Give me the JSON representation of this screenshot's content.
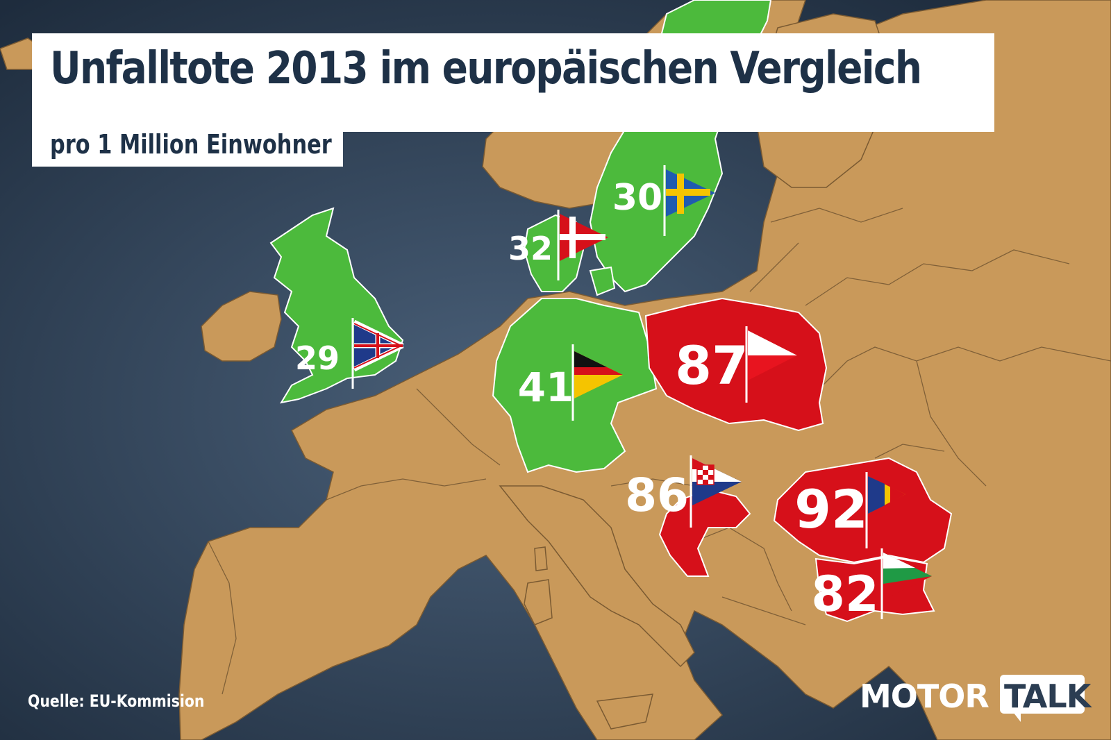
{
  "title": "Unfalltote 2013 im europäischen Vergleich",
  "subtitle": "pro 1 Million Einwohner",
  "source": "Quelle: EU-Kommision",
  "logo": {
    "part1": "MOTOR",
    "part2": "TALK"
  },
  "colors": {
    "sea": "#2b3d52",
    "land": "#c9995a",
    "low": "#4cba3c",
    "high": "#d6101a"
  },
  "countries": [
    {
      "id": "uk",
      "value": "29",
      "flag": "united-kingdom-flag",
      "category": "low"
    },
    {
      "id": "se",
      "value": "30",
      "flag": "sweden-flag",
      "category": "low"
    },
    {
      "id": "dk",
      "value": "32",
      "flag": "denmark-flag",
      "category": "low"
    },
    {
      "id": "de",
      "value": "41",
      "flag": "germany-flag",
      "category": "low"
    },
    {
      "id": "pl",
      "value": "87",
      "flag": "poland-flag",
      "category": "high"
    },
    {
      "id": "hr",
      "value": "86",
      "flag": "croatia-flag",
      "category": "high"
    },
    {
      "id": "ro",
      "value": "92",
      "flag": "romania-flag",
      "category": "high"
    },
    {
      "id": "bg",
      "value": "82",
      "flag": "bulgaria-flag",
      "category": "high"
    }
  ]
}
